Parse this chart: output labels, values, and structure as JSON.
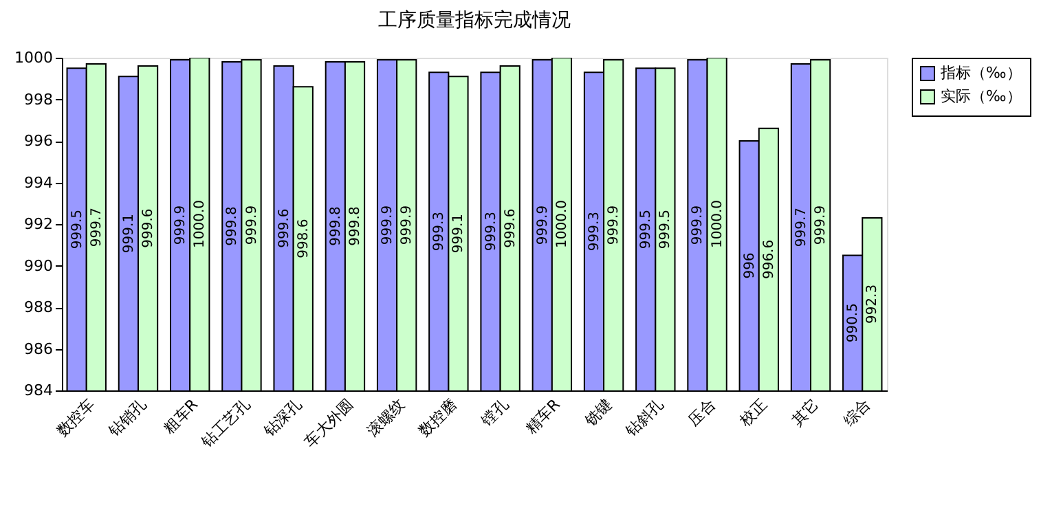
{
  "chart_data": {
    "type": "bar",
    "title": "工序质量指标完成情况",
    "categories": [
      "数控车",
      "钻销孔",
      "粗车R",
      "钻工艺孔",
      "钻深孔",
      "车大外圆",
      "滚螺纹",
      "数控磨",
      "镗孔",
      "精车R",
      "铣键",
      "钻斜孔",
      "压合",
      "校正",
      "其它",
      "综合"
    ],
    "series": [
      {
        "name": "指标（‰）",
        "color": "#9999ff",
        "values": [
          999.5,
          999.1,
          999.9,
          999.8,
          999.6,
          999.8,
          999.9,
          999.3,
          999.3,
          999.9,
          999.3,
          999.5,
          999.9,
          996,
          999.7,
          990.5
        ],
        "value_labels": [
          "999.5",
          "999.1",
          "999.9",
          "999.8",
          "999.6",
          "999.8",
          "999.9",
          "999.3",
          "999.3",
          "999.9",
          "999.3",
          "999.5",
          "999.9",
          "996",
          "999.7",
          "990.5"
        ]
      },
      {
        "name": "实际（‰）",
        "color": "#ccffcc",
        "values": [
          999.7,
          999.6,
          1000.0,
          999.9,
          998.6,
          999.8,
          999.9,
          999.1,
          999.6,
          1000.0,
          999.9,
          999.5,
          1000.0,
          996.6,
          999.9,
          992.3
        ],
        "value_labels": [
          "999.7",
          "999.6",
          "1000.0",
          "999.9",
          "998.6",
          "999.8",
          "999.9",
          "999.1",
          "999.6",
          "1000.0",
          "999.9",
          "999.5",
          "1000.0",
          "996.6",
          "999.9",
          "992.3"
        ]
      }
    ],
    "ylim": [
      984,
      1000
    ],
    "yticks": [
      984,
      986,
      988,
      990,
      992,
      994,
      996,
      998,
      1000
    ],
    "grid": false,
    "legend": "top right"
  }
}
